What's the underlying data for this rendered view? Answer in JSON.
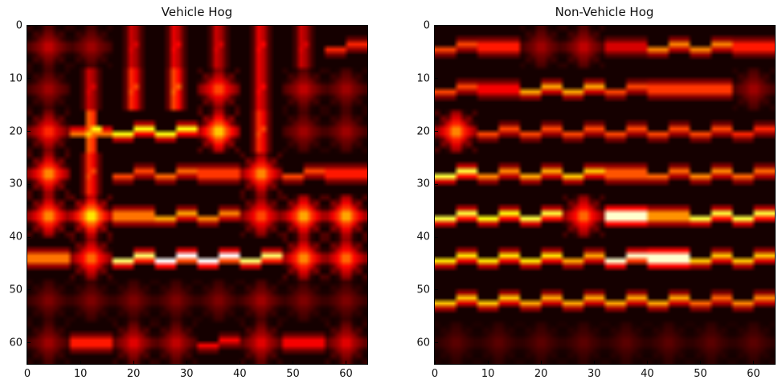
{
  "chart_data": [
    {
      "type": "heatmap",
      "title": "Vehicle Hog",
      "colormap": "hot",
      "xlim": [
        0,
        64
      ],
      "ylim": [
        64,
        0
      ],
      "xticks": [
        "0",
        "10",
        "20",
        "30",
        "40",
        "50",
        "60"
      ],
      "yticks": [
        "0",
        "10",
        "20",
        "30",
        "40",
        "50",
        "60"
      ],
      "cell_size": 8,
      "cells": [
        [
          "star",
          0.25,
          "star",
          0.2,
          "vert",
          0.3,
          "vert",
          0.35,
          "vert",
          0.3,
          "vert",
          0.35,
          "vert",
          0.3,
          "diag",
          0.4
        ],
        [
          "star",
          0.2,
          "vert",
          0.3,
          "vert",
          0.45,
          "vert",
          0.5,
          "star",
          0.45,
          "vert",
          0.35,
          "star",
          0.25,
          "star",
          0.2
        ],
        [
          "star",
          0.4,
          "cross",
          0.75,
          "diag",
          0.75,
          "diag",
          0.75,
          "star",
          0.65,
          "vert",
          0.45,
          "star",
          0.2,
          "star",
          0.2
        ],
        [
          "star",
          0.55,
          "vert",
          0.45,
          "diag",
          0.45,
          "diag",
          0.5,
          "bar",
          0.45,
          "star",
          0.55,
          "diag",
          0.45,
          "bar",
          0.4
        ],
        [
          "star",
          0.55,
          "star",
          0.7,
          "bar",
          0.55,
          "diag",
          0.6,
          "diag",
          0.55,
          "star",
          0.45,
          "star",
          0.6,
          "star",
          0.6
        ],
        [
          "bar",
          0.55,
          "star",
          0.5,
          "diag",
          0.85,
          "diag",
          1.0,
          "diag",
          1.0,
          "diag",
          0.85,
          "star",
          0.55,
          "star",
          0.5
        ],
        [
          "star",
          0.15,
          "star",
          0.15,
          "star",
          0.15,
          "star",
          0.15,
          "star",
          0.15,
          "star",
          0.2,
          "star",
          0.15,
          "star",
          0.15
        ],
        [
          "star",
          0.2,
          "bar",
          0.4,
          "star",
          0.3,
          "star",
          0.25,
          "diag",
          0.35,
          "star",
          0.3,
          "bar",
          0.35,
          "star",
          0.3
        ]
      ]
    },
    {
      "type": "heatmap",
      "title": "Non-Vehicle Hog",
      "colormap": "hot",
      "xlim": [
        0,
        64
      ],
      "ylim": [
        64,
        0
      ],
      "xticks": [
        "0",
        "10",
        "20",
        "30",
        "40",
        "50",
        "60"
      ],
      "yticks": [
        "0",
        "10",
        "20",
        "30",
        "40",
        "50",
        "60"
      ],
      "cell_size": 8,
      "cells": [
        [
          "diag",
          0.45,
          "bar",
          0.4,
          "star",
          0.2,
          "star",
          0.25,
          "bar",
          0.3,
          "diag",
          0.55,
          "diag",
          0.55,
          "bar",
          0.4
        ],
        [
          "diag",
          0.45,
          "bar",
          0.35,
          "diag",
          0.6,
          "diag",
          0.6,
          "diag",
          0.45,
          "bar",
          0.45,
          "bar",
          0.45,
          "star",
          0.2
        ],
        [
          "star",
          0.55,
          "diag",
          0.45,
          "diag",
          0.45,
          "diag",
          0.45,
          "diag",
          0.45,
          "diag",
          0.45,
          "diag",
          0.45,
          "diag",
          0.4
        ],
        [
          "diag",
          0.8,
          "diag",
          0.55,
          "diag",
          0.6,
          "diag",
          0.65,
          "bar",
          0.5,
          "diag",
          0.5,
          "diag",
          0.55,
          "diag",
          0.5
        ],
        [
          "diag",
          0.8,
          "diag",
          0.75,
          "diag",
          0.8,
          "star",
          0.5,
          "bar",
          1.0,
          "bar",
          0.6,
          "diag",
          0.8,
          "diag",
          0.8
        ],
        [
          "diag",
          0.7,
          "diag",
          0.7,
          "diag",
          0.7,
          "diag",
          0.6,
          "diag",
          0.95,
          "bar",
          1.0,
          "diag",
          0.65,
          "diag",
          0.65
        ],
        [
          "diag",
          0.65,
          "diag",
          0.65,
          "diag",
          0.6,
          "diag",
          0.6,
          "diag",
          0.6,
          "diag",
          0.6,
          "diag",
          0.5,
          "diag",
          0.55
        ],
        [
          "star",
          0.1,
          "star",
          0.1,
          "star",
          0.1,
          "star",
          0.1,
          "star",
          0.1,
          "star",
          0.1,
          "star",
          0.1,
          "star",
          0.1
        ]
      ]
    }
  ]
}
